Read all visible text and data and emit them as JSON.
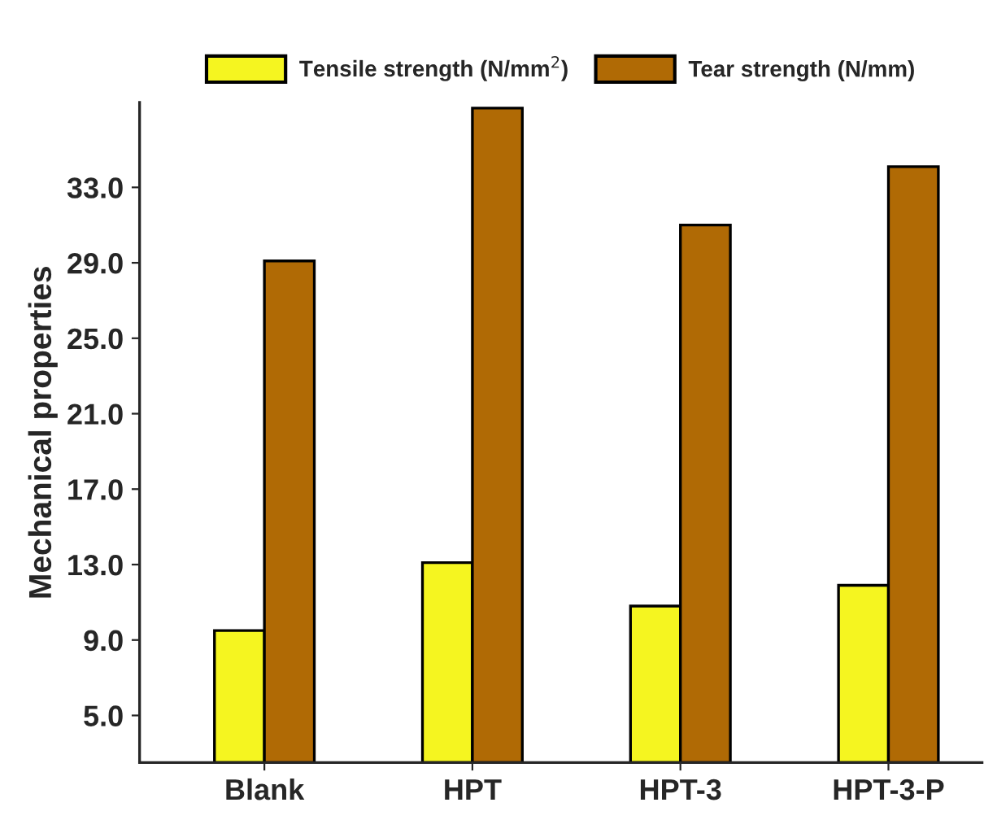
{
  "chart_data": {
    "type": "bar",
    "ylabel": "Mechanical properties",
    "categories": [
      "Blank",
      "HPT",
      "HPT-3",
      "HPT-3-P"
    ],
    "series": [
      {
        "name": "Tensile strength (N/mm$^{2}$)",
        "color": "#f5f520",
        "values": [
          9.5,
          13.1,
          10.8,
          11.9
        ]
      },
      {
        "name": "Tear strength (N/mm)",
        "color": "#b06a05",
        "values": [
          29.1,
          37.2,
          31.0,
          34.1
        ]
      }
    ],
    "ylim": [
      2.5,
      37.5
    ],
    "yticks": [
      {
        "value": 5,
        "label": "5.0"
      },
      {
        "value": 9,
        "label": "9.0"
      },
      {
        "value": 13,
        "label": "13.0"
      },
      {
        "value": 17,
        "label": "17.0"
      },
      {
        "value": 21,
        "label": "21.0"
      },
      {
        "value": 25,
        "label": "25.0"
      },
      {
        "value": 29,
        "label": "29.0"
      },
      {
        "value": 33,
        "label": "33.0"
      }
    ],
    "grid": false,
    "legend": "top"
  }
}
